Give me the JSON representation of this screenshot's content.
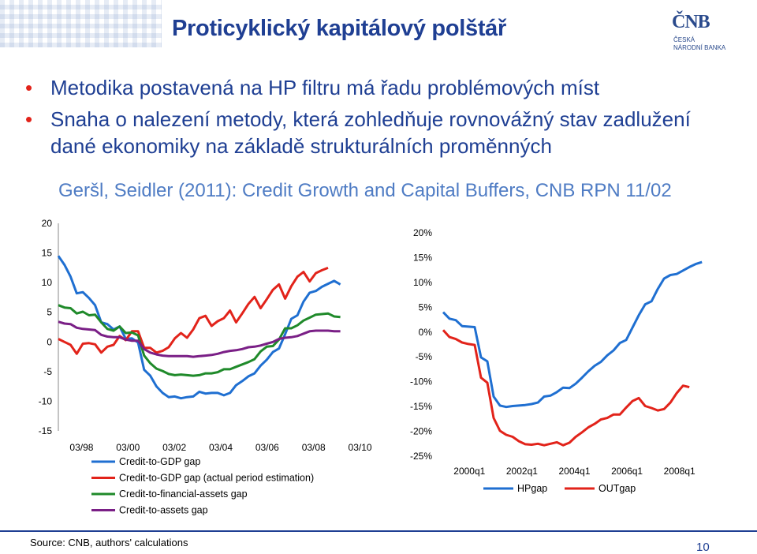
{
  "header": {
    "title": "Proticyklický kapitálový polštář"
  },
  "logo": {
    "mark": "ČNB",
    "line1": "ČESKÁ",
    "line2": "NÁRODNÍ BANKA"
  },
  "bullets": [
    "Metodika postavená na HP filtru má řadu problémových míst",
    "Snaha o nalezení metody, která zohledňuje rovnovážný stav zadlužení dané ekonomiky na základě strukturálních proměnných"
  ],
  "subnote": "Geršl, Seidler (2011): Credit Growth and Capital Buffers, CNB RPN 11/02",
  "footer": {
    "source": "Source: CNB, authors' calculations",
    "page": "10"
  },
  "colors": {
    "blue": "#1f6fd1",
    "red": "#e2231a",
    "green": "#1f8a2a",
    "purple": "#7a1f86",
    "title": "#1f3f93"
  },
  "chart_data": [
    {
      "type": "line",
      "title": "",
      "xlabel": "",
      "ylabel": "",
      "ylim": [
        -15,
        20
      ],
      "yticks": [
        "20",
        "15",
        "10",
        "5",
        "0",
        "-5",
        "-10",
        "-15"
      ],
      "xticks": [
        "03/98",
        "03/00",
        "03/02",
        "03/04",
        "03/06",
        "03/08",
        "03/10"
      ],
      "grid": false,
      "legend": "bottom",
      "x_start": 1998.0,
      "x_step": 0.25,
      "series": [
        {
          "name": "Credit-to-GDP gap",
          "color": "#1f6fd1",
          "values": [
            14.5,
            13,
            11,
            8.2,
            8.4,
            7.4,
            6.2,
            3.3,
            3,
            2.1,
            2.6,
            0.5,
            0.6,
            -0.1,
            -4.7,
            -5.7,
            -7.5,
            -8.6,
            -9.3,
            -9.2,
            -9.5,
            -9.3,
            -9.2,
            -8.4,
            -8.7,
            -8.6,
            -8.6,
            -9,
            -8.6,
            -7.3,
            -6.6,
            -5.8,
            -5.3,
            -4,
            -3,
            -1.7,
            -1.1,
            1.3,
            3.9,
            4.5,
            6.8,
            8.3,
            8.6,
            9.3,
            9.8,
            10.3,
            9.7
          ]
        },
        {
          "name": "Credit-to-GDP gap (actual period estimation)",
          "color": "#e2231a",
          "values": [
            0.5,
            0,
            -0.5,
            -2,
            -0.3,
            -0.2,
            -0.4,
            -1.8,
            -0.8,
            -0.5,
            1,
            0.3,
            1.8,
            1.8,
            -1,
            -1,
            -1.8,
            -1.5,
            -0.9,
            0.6,
            1.5,
            0.7,
            2.1,
            4,
            4.4,
            2.7,
            3.5,
            4,
            5.3,
            3.3,
            4.8,
            6.4,
            7.6,
            5.7,
            7.2,
            8.8,
            9.7,
            7.3,
            9.4,
            11,
            11.8,
            10.2,
            11.6,
            12.1,
            12.5
          ]
        },
        {
          "name": "Credit-to-financial-assets gap",
          "color": "#1f8a2a",
          "values": [
            6.2,
            5.8,
            5.7,
            4.8,
            5.1,
            4.5,
            4.6,
            3.3,
            2.2,
            1.9,
            2.6,
            1.5,
            1.6,
            1.1,
            -2.3,
            -3.6,
            -4.5,
            -4.9,
            -5.4,
            -5.6,
            -5.5,
            -5.6,
            -5.7,
            -5.6,
            -5.3,
            -5.3,
            -5.1,
            -4.6,
            -4.6,
            -4.2,
            -3.8,
            -3.4,
            -2.9,
            -1.6,
            -0.8,
            -0.7,
            0.4,
            2.3,
            2.3,
            2.8,
            3.6,
            4.1,
            4.6,
            4.7,
            4.8,
            4.3,
            4.2
          ]
        },
        {
          "name": "Credit-to-assets gap",
          "color": "#7a1f86",
          "values": [
            3.4,
            3.1,
            3,
            2.4,
            2.2,
            2.1,
            2,
            1.2,
            0.9,
            0.8,
            0.8,
            0.4,
            0.2,
            0.2,
            -1.2,
            -1.8,
            -2.1,
            -2.3,
            -2.4,
            -2.4,
            -2.4,
            -2.4,
            -2.5,
            -2.4,
            -2.3,
            -2.2,
            -2,
            -1.7,
            -1.5,
            -1.4,
            -1.2,
            -0.9,
            -0.8,
            -0.6,
            -0.3,
            0,
            0.5,
            0.7,
            0.8,
            1,
            1.4,
            1.8,
            1.9,
            1.9,
            1.9,
            1.8,
            1.8
          ]
        }
      ]
    },
    {
      "type": "line",
      "title": "",
      "xlabel": "",
      "ylabel": "",
      "ylim": [
        -25,
        20
      ],
      "yticks": [
        "20%",
        "15%",
        "10%",
        "5%",
        "0%",
        "-5%",
        "-10%",
        "-15%",
        "-20%",
        "-25%"
      ],
      "xticks": [
        "2000q1",
        "2002q1",
        "2004q1",
        "2006q1",
        "2008q1"
      ],
      "grid": false,
      "legend": "bottom",
      "x_start": 2000.0,
      "x_step": 0.25,
      "series": [
        {
          "name": "HPgap",
          "color": "#1f6fd1",
          "values": [
            4,
            2.7,
            2.4,
            1.2,
            1.1,
            1,
            -5.1,
            -5.9,
            -13,
            -14.8,
            -15.1,
            -14.9,
            -14.8,
            -14.7,
            -14.5,
            -14.2,
            -13,
            -12.8,
            -12.1,
            -11.2,
            -11.3,
            -10.4,
            -9.2,
            -7.9,
            -6.8,
            -6,
            -4.7,
            -3.7,
            -2.2,
            -1.6,
            0.9,
            3.4,
            5.6,
            6.2,
            8.7,
            10.8,
            11.5,
            11.7,
            12.4,
            13.1,
            13.7,
            14.1
          ]
        },
        {
          "name": "OUTgap",
          "color": "#e2231a",
          "values": [
            0.4,
            -1,
            -1.4,
            -2.1,
            -2.4,
            -2.6,
            -9.2,
            -10.2,
            -17.3,
            -19.9,
            -20.7,
            -21.1,
            -22,
            -22.6,
            -22.7,
            -22.5,
            -22.8,
            -22.5,
            -22.2,
            -22.8,
            -22.3,
            -21.1,
            -20.2,
            -19.2,
            -18.5,
            -17.6,
            -17.3,
            -16.6,
            -16.6,
            -15.2,
            -13.9,
            -13.3,
            -14.9,
            -15.3,
            -15.8,
            -15.5,
            -14.2,
            -12.3,
            -10.8,
            -11.1
          ]
        }
      ]
    }
  ]
}
